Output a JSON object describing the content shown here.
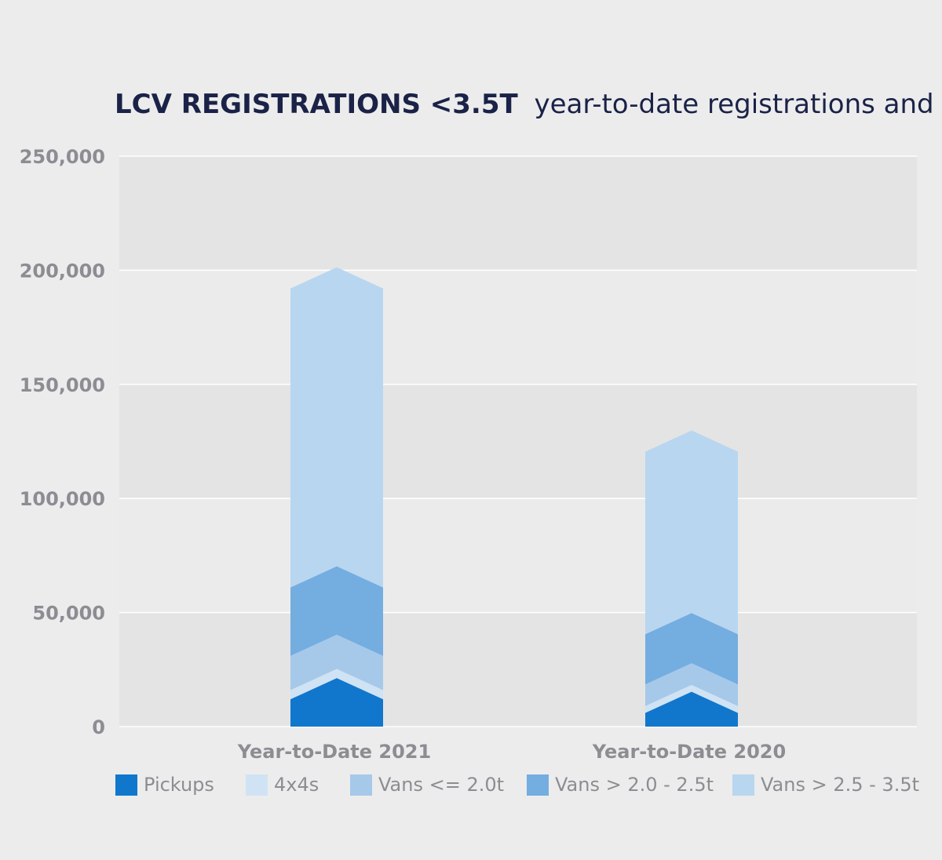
{
  "chart_data": {
    "type": "bar",
    "stacked": true,
    "title_bold": "LCV REGISTRATIONS <3.5T",
    "title_rest": "year-to-date registrations and split",
    "xlabel": "",
    "ylabel": "",
    "ylim": [
      0,
      250000
    ],
    "yticks": [
      {
        "value": 0,
        "label": "0"
      },
      {
        "value": 50000,
        "label": "50,000"
      },
      {
        "value": 100000,
        "label": "100,000"
      },
      {
        "value": 150000,
        "label": "150,000"
      },
      {
        "value": 200000,
        "label": "200,000"
      },
      {
        "value": 250000,
        "label": "250,000"
      }
    ],
    "categories": [
      "Year-to-Date 2021",
      "Year-to-Date 2020"
    ],
    "series": [
      {
        "name": "Pickups",
        "color": "#1177cc",
        "values": [
          12000,
          6000
        ]
      },
      {
        "name": "4x4s",
        "color": "#cfe3f4",
        "values": [
          4000,
          3000
        ]
      },
      {
        "name": "Vans <= 2.0t",
        "color": "#a6c9ea",
        "values": [
          15000,
          9500
        ]
      },
      {
        "name": "Vans > 2.0 - 2.5t",
        "color": "#74ade0",
        "values": [
          30000,
          22000
        ]
      },
      {
        "name": "Vans > 2.5 - 3.5t",
        "color": "#b8d6ef",
        "values": [
          131000,
          80000
        ]
      }
    ],
    "grid": true,
    "legend_position": "bottom"
  }
}
